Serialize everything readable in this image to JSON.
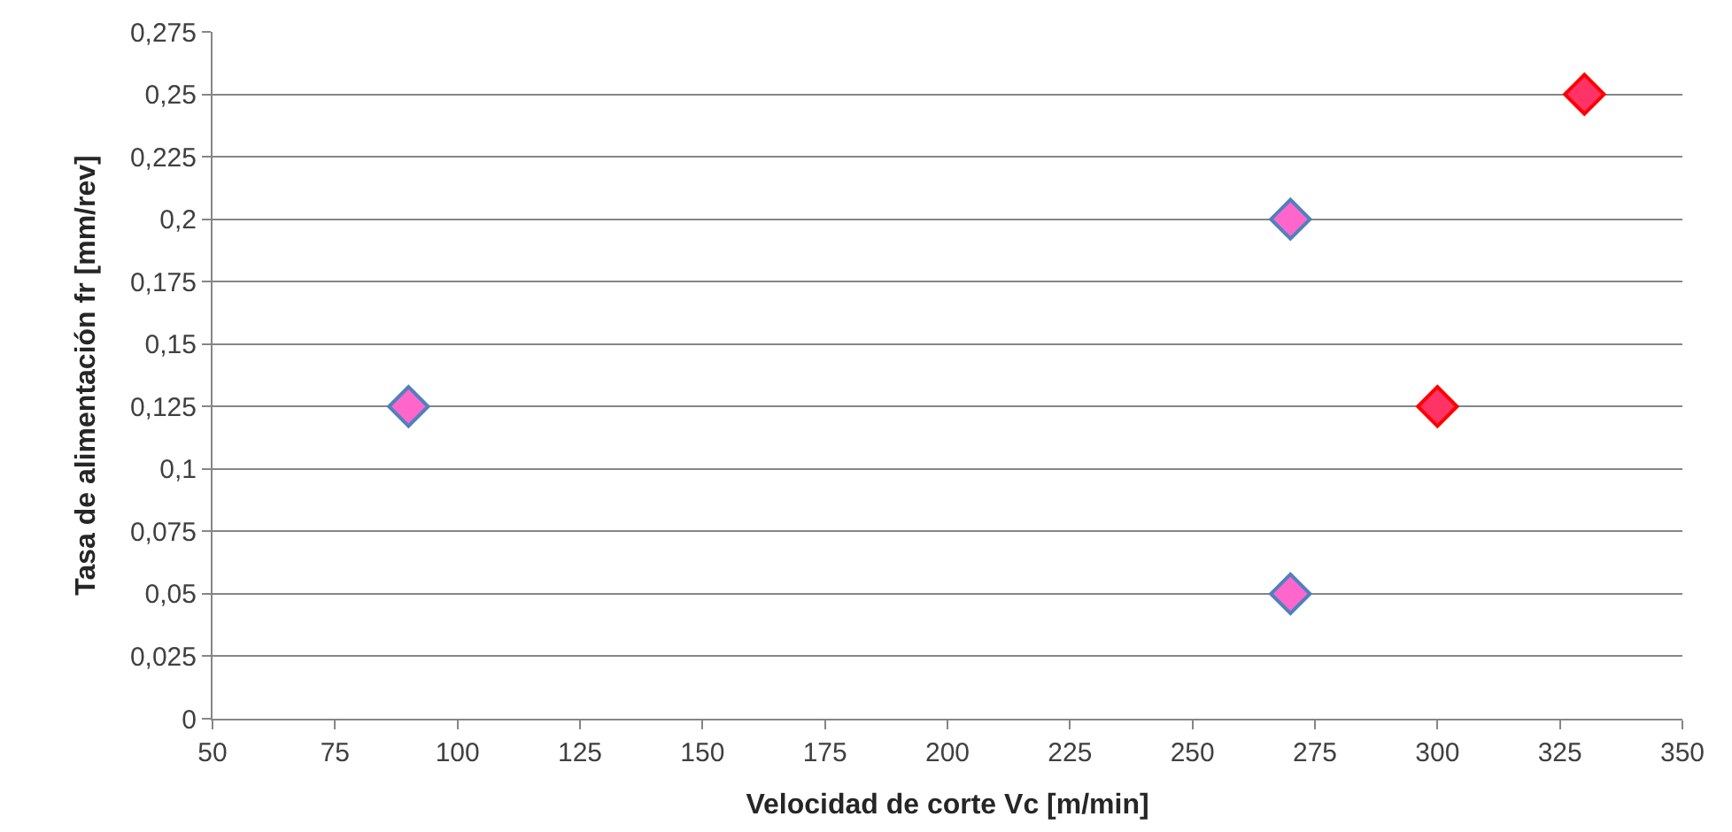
{
  "chart_data": {
    "type": "scatter",
    "xlabel": "Velocidad de corte Vc [m/min]",
    "ylabel": "Tasa de alimentación fr [mm/rev]",
    "series": [
      {
        "color": "#ff66cc",
        "x": [
          90,
          270,
          270
        ],
        "values": [
          0.125,
          0.2,
          0.05
        ]
      },
      {
        "color": "#ff3366",
        "x": [
          300,
          330
        ],
        "values": [
          0.125,
          0.25
        ]
      }
    ],
    "xlim": [
      50,
      350
    ],
    "xticks": [
      50,
      75,
      100,
      125,
      150,
      175,
      200,
      225,
      250,
      275,
      300,
      325,
      350
    ],
    "ylim": [
      0,
      0.275
    ],
    "yticks": [
      0,
      {
        "value": 0.025,
        "label": "0,025"
      },
      {
        "value": 0.05,
        "label": "0,05"
      },
      {
        "value": 0.075,
        "label": "0,075"
      },
      {
        "value": 0.1,
        "label": "0,1"
      },
      {
        "value": 0.125,
        "label": "0,125"
      },
      {
        "value": 0.15,
        "label": "0,15"
      },
      {
        "value": 0.175,
        "label": "0,175"
      },
      {
        "value": 0.2,
        "label": "0,2"
      },
      {
        "value": 0.225,
        "label": "0,225"
      },
      {
        "value": 0.25,
        "label": "0,25"
      },
      {
        "value": 0.275,
        "label": "0,275"
      }
    ],
    "grid": "y",
    "marker": "diamond"
  }
}
